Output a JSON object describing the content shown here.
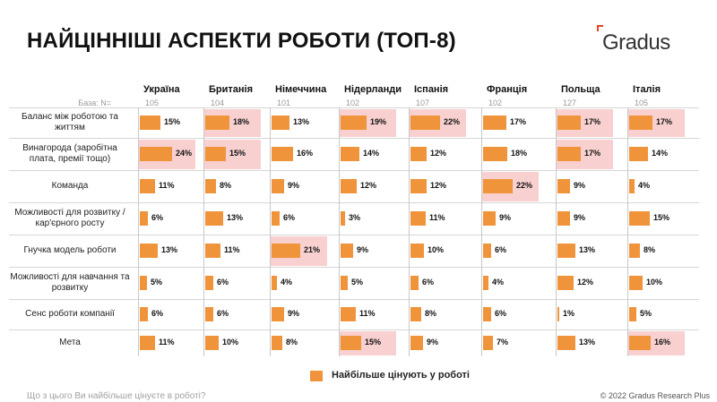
{
  "title": "НАЙЦІННІШІ АСПЕКТИ РОБОТИ (ТОП-8)",
  "brand": {
    "name": "Gradus",
    "accent": "#e8451e"
  },
  "base_label": "База: N=",
  "footer": {
    "question": "Що з цього Ви найбільше цінуєте в роботі?",
    "copyright": "© 2022 Gradus Research Plus"
  },
  "colors": {
    "bar": "#f0943c",
    "highlight": "#f8d0d0"
  },
  "chart_data": {
    "type": "bar",
    "title": "НАЙЦІННІШІ АСПЕКТИ РОБОТИ (ТОП-8)",
    "categories": [
      "Баланс між роботою та життям",
      "Винагорода (заробітна плата, премії тощо)",
      "Команда",
      "Можливості для розвитку / кар'єрного росту",
      "Гнучка модель роботи",
      "Можливості для навчання та розвитку",
      "Сенс роботи компанії",
      "Мета"
    ],
    "series": [
      {
        "name": "Україна",
        "base": "105",
        "values": [
          15,
          24,
          11,
          6,
          13,
          5,
          6,
          11
        ],
        "labels": [
          "15%",
          "24%",
          "11%",
          "6%",
          "13%",
          "5%",
          "6%",
          "11%"
        ],
        "highlight": [
          1
        ]
      },
      {
        "name": "Британія",
        "base": "104",
        "values": [
          18,
          15,
          8,
          13,
          11,
          6,
          6,
          10
        ],
        "labels": [
          "18%",
          "15%",
          "8%",
          "13%",
          "11%",
          "6%",
          "6%",
          "10%"
        ],
        "highlight": [
          0,
          1
        ]
      },
      {
        "name": "Німеччина",
        "base": "101",
        "values": [
          13,
          16,
          9,
          6,
          21,
          4,
          9,
          8
        ],
        "labels": [
          "13%",
          "16%",
          "9%",
          "6%",
          "21%",
          "4%",
          "9%",
          "8%"
        ],
        "highlight": [
          4
        ]
      },
      {
        "name": "Нідерланди",
        "base": "102",
        "values": [
          19,
          14,
          12,
          3,
          9,
          5,
          11,
          15
        ],
        "labels": [
          "19%",
          "14%",
          "12%",
          "3%",
          "9%",
          "5%",
          "11%",
          "15%"
        ],
        "highlight": [
          0,
          7
        ]
      },
      {
        "name": "Іспанія",
        "base": "107",
        "values": [
          22,
          12,
          12,
          11,
          10,
          6,
          8,
          9
        ],
        "labels": [
          "22%",
          "12%",
          "12%",
          "11%",
          "10%",
          "6%",
          "8%",
          "9%"
        ],
        "highlight": [
          0
        ]
      },
      {
        "name": "Франція",
        "base": "102",
        "values": [
          17,
          18,
          22,
          9,
          6,
          4,
          6,
          7
        ],
        "labels": [
          "17%",
          "18%",
          "22%",
          "9%",
          "6%",
          "4%",
          "6%",
          "7%"
        ],
        "highlight": [
          2
        ]
      },
      {
        "name": "Польща",
        "base": "127",
        "values": [
          17,
          17,
          9,
          9,
          13,
          12,
          1,
          13
        ],
        "labels": [
          "17%",
          "17%",
          "9%",
          "9%",
          "13%",
          "12%",
          "1%",
          "13%"
        ],
        "highlight": [
          0,
          1
        ]
      },
      {
        "name": "Італія",
        "base": "105",
        "values": [
          17,
          14,
          4,
          15,
          8,
          10,
          5,
          16
        ],
        "labels": [
          "17%",
          "14%",
          "4%",
          "15%",
          "8%",
          "10%",
          "5%",
          "16%"
        ],
        "highlight": [
          0,
          7
        ]
      }
    ],
    "legend": [
      "Найбільше цінують у роботі"
    ],
    "legend_position": "bottom-center",
    "xlim": [
      0,
      24
    ]
  }
}
